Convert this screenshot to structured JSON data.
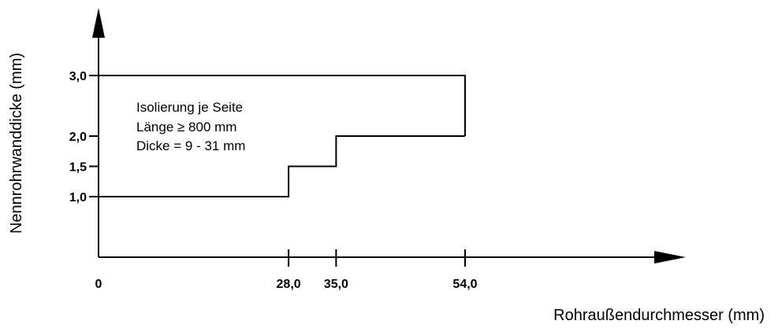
{
  "chart_data": {
    "type": "line",
    "title": "",
    "xlabel": "Rohraußendurchmesser (mm)",
    "ylabel": "Nennrohrwanddicke (mm)",
    "x_ticks": [
      {
        "value": 0,
        "label": "0"
      },
      {
        "value": 28,
        "label": "28,0"
      },
      {
        "value": 35,
        "label": "35,0"
      },
      {
        "value": 54,
        "label": "54,0"
      }
    ],
    "y_ticks": [
      {
        "value": 1.0,
        "label": "1,0"
      },
      {
        "value": 1.5,
        "label": "1,5"
      },
      {
        "value": 2.0,
        "label": "2,0"
      },
      {
        "value": 3.0,
        "label": "3,0"
      }
    ],
    "series": [
      {
        "values": [
          [
            0,
            1.0
          ],
          [
            28,
            1.0
          ],
          [
            28,
            1.5
          ],
          [
            35,
            1.5
          ],
          [
            35,
            2.0
          ],
          [
            54,
            2.0
          ]
        ]
      },
      {
        "values": [
          [
            0,
            3.0
          ],
          [
            54,
            3.0
          ],
          [
            54,
            2.0
          ]
        ]
      }
    ],
    "annotations": [
      "Isolierung je Seite",
      "Länge ≥ 800 mm",
      "Dicke = 9 - 31 mm"
    ],
    "grid": false
  }
}
